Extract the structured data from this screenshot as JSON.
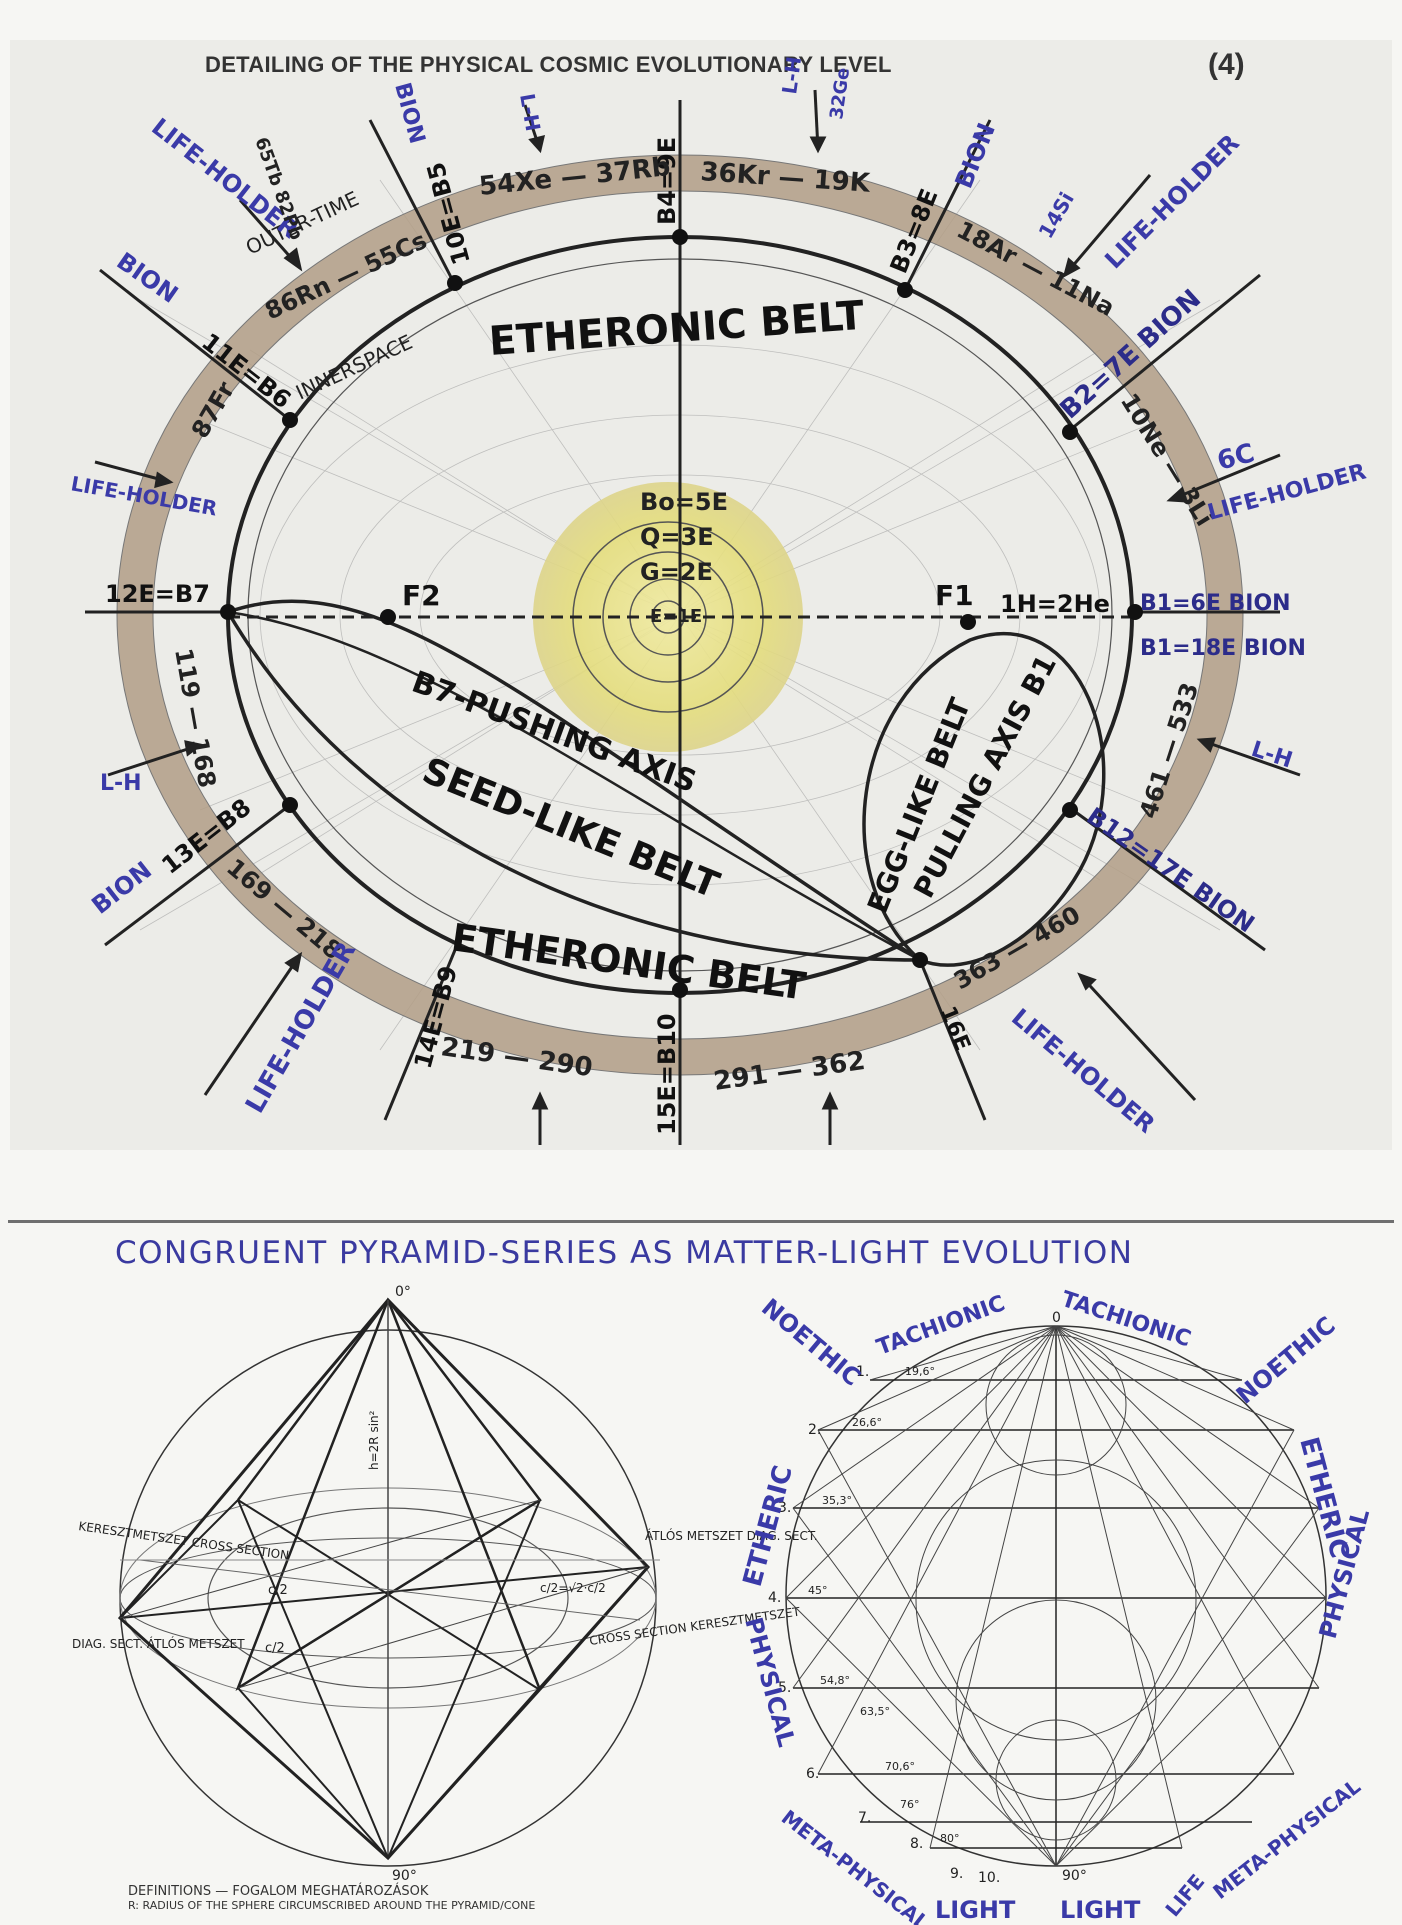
{
  "header": {
    "title": "DETAILING OF THE PHYSICAL COSMIC EVOLUTIONARY LEVEL",
    "page_number": "(4)"
  },
  "ellipse_diagram": {
    "belt_top": "ETHERONIC BELT",
    "belt_bottom": "ETHERONIC BELT",
    "seed_belt": "SEED-LIKE BELT",
    "egg_belt": "EGG-LIKE BELT",
    "pushing_axis": "B7-PUSHING AXIS",
    "pulling_axis": "PULLING AXIS B1",
    "inner_space": "INNERSPACE",
    "outer_time": "OUTER-TIME",
    "focus_left": "F2",
    "focus_right": "F1",
    "center_core": {
      "bo": "Bo=5E",
      "q": "Q=3E",
      "g": "G=2E",
      "e": "E=1E"
    },
    "node_labels": {
      "b1": "B1=6E BION",
      "b1b": "B1=18E BION",
      "b2": "B2=7E BION",
      "b3": "B3=8E",
      "b4": "B4=9E",
      "b5": "10E=B5",
      "b6": "11E=B6",
      "b7": "12E=B7",
      "b8": "13E=B8",
      "b9": "14E=B9",
      "b10": "15E=B10",
      "b11": "16E",
      "b12": "B12=17E BION",
      "h": "1H=2He"
    },
    "ring_labels": {
      "r1": "36Kr — 19K",
      "r2": "54Xe — 37Rb",
      "r3": "86Rn — 55Cs",
      "r4": "87Fr",
      "r5": "18Ar — 11Na",
      "r6": "10Ne — 3Li",
      "r7": "119 — 168",
      "r8": "169 — 218",
      "r9": "219 — 290",
      "r10": "291 — 362",
      "r11": "363 — 460",
      "r12": "461 — 533"
    },
    "outer_labels": {
      "life_holder_tl": "LIFE-HOLDER",
      "life_holder_tr": "LIFE-HOLDER",
      "life_holder_r": "LIFE-HOLDER",
      "life_holder_l": "LIFE-HOLDER",
      "life_holder_bl": "LIFE-HOLDER",
      "life_holder_br": "LIFE-HOLDER",
      "bion_tl": "BION",
      "bion_top": "BION",
      "bion_tr": "BION",
      "bion_l": "BION",
      "lh_top": "L-H",
      "lh_top2": "L-H",
      "lh_l": "L-H",
      "lh_r": "L-H",
      "n_32ge": "32Ge",
      "n_14si": "14Si",
      "n_6c": "6C",
      "n_65": "65Tb 82Pb"
    }
  },
  "pyramid_section": {
    "title": "CONGRUENT PYRAMID-SERIES AS MATTER-LIGHT EVOLUTION",
    "left": {
      "top_deg": "0°",
      "bottom_deg": "90°",
      "left_top": "KERESZTMETSZET CROSS SECTION",
      "left_bottom": "DIAG. SECT. ÁTLÓS METSZET",
      "right_top": "ÁTLÓS METSZET DIAG. SECT.",
      "right_bottom": "CROSS SECTION KERESZTMETSZET",
      "c2a": "c/2",
      "c2b": "c/2",
      "h_formula": "h=2R sin²",
      "c2v2": "c/2=√2·c/2"
    },
    "right": {
      "noethic_l": "NOETHIC",
      "noethic_r": "NOETHIC",
      "tachionic_l": "TACHIONIC",
      "tachionic_r": "TACHIONIC",
      "etheric_l": "ETHERIC",
      "etheric_r": "ETHERIC",
      "physical_l": "PHYSICAL",
      "physical_r": "PHYSICAL",
      "meta_l": "META-PHYSICAL",
      "meta_r": "META-PHYSICAL",
      "light_l": "LIGHT",
      "light_r": "LIGHT",
      "life": "LIFE",
      "top_zero": "0",
      "bottom_deg": "90°",
      "levels": [
        "1.",
        "2.",
        "3.",
        "4.",
        "5.",
        "6.",
        "7.",
        "8.",
        "9.",
        "10."
      ],
      "angles": [
        "19,6°",
        "26,6°",
        "35,3°",
        "45°",
        "54,8°",
        "63,5°",
        "70,6°",
        "76°",
        "80°"
      ]
    }
  },
  "definitions": {
    "line1": "DEFINITIONS — FOGALOM MEGHATÁROZÁSOK",
    "line2": "R: RADIUS OF THE SPHERE CIRCUMSCRIBED AROUND THE PYRAMID/CONE"
  }
}
